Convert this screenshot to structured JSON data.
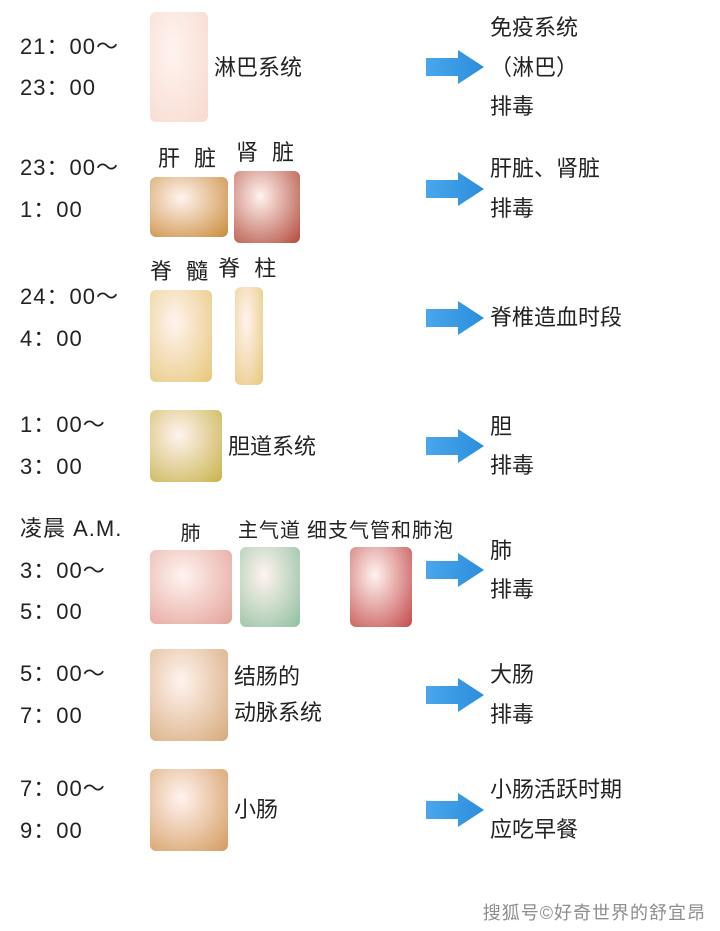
{
  "colors": {
    "text": "#222222",
    "background": "#ffffff",
    "arrow_fill": "#4aa6ec",
    "arrow_fill2": "#2a8edc",
    "watermark": "#7a7a7a",
    "body_ph": "#f7d9cf",
    "liver_ph": "#c98a3a",
    "kidney_ph": "#b24a3a",
    "spine_ph": "#e7c77a",
    "gall_ph": "#c8b24a",
    "lung_ph": "#e3a299",
    "trachea_ph": "#8fbf9f",
    "alveoli_ph": "#c24a4a",
    "colon_ph": "#d6a97a",
    "small_ph": "#d49a5e"
  },
  "arrow": {
    "width": 62,
    "height": 38
  },
  "rows": [
    {
      "time1": "21：00～",
      "time2": "23：00",
      "organs": [
        {
          "label": "",
          "ph_color": "#f7d9cf",
          "w": 58,
          "h": 110
        }
      ],
      "side_label": "淋巴系统",
      "desc1": "免疫系统",
      "desc2": "（淋巴）",
      "desc3": "排毒"
    },
    {
      "time1": "23：00～",
      "time2": "1：00",
      "organs": [
        {
          "label": "肝 脏",
          "ph_color": "#c98a3a",
          "w": 78,
          "h": 60
        },
        {
          "label": "肾 脏",
          "ph_color": "#b24a3a",
          "w": 66,
          "h": 72
        }
      ],
      "desc1": "肝脏、肾脏",
      "desc2": "排毒"
    },
    {
      "time1": "24：00～",
      "time2": "4：00",
      "organs": [
        {
          "label": "脊 髓",
          "ph_color": "#e7c77a",
          "w": 62,
          "h": 92
        },
        {
          "label": "脊 柱",
          "ph_color": "#e7c77a",
          "w": 28,
          "h": 98
        }
      ],
      "desc1": "脊椎造血时段"
    },
    {
      "time1": "1：00～",
      "time2": "3：00",
      "organs": [
        {
          "label": "",
          "ph_color": "#c8b24a",
          "w": 72,
          "h": 72
        }
      ],
      "side_label": "胆道系统",
      "desc1": "胆",
      "desc2": "排毒"
    },
    {
      "pre_label": "凌晨 A.M.",
      "time1": "3：00～",
      "time2": "5：00",
      "organs": [
        {
          "label": "肺",
          "ph_color": "#e3a299",
          "w": 82,
          "h": 74,
          "tight": true
        },
        {
          "label": "主气道",
          "ph_color": "#8fbf9f",
          "w": 60,
          "h": 80,
          "tight": true
        },
        {
          "label": "细支气管和肺泡",
          "ph_color": "#c24a4a",
          "w": 62,
          "h": 80,
          "tight": true
        }
      ],
      "desc1": "肺",
      "desc2": "排毒"
    },
    {
      "time1": "5：00～",
      "time2": "7：00",
      "organs": [
        {
          "label": "",
          "ph_color": "#d6a97a",
          "w": 78,
          "h": 92
        }
      ],
      "side_label": "结肠的",
      "side_label2": "动脉系统",
      "desc1": "大肠",
      "desc2": "排毒"
    },
    {
      "time1": "7：00～",
      "time2": "9：00",
      "organs": [
        {
          "label": "",
          "ph_color": "#d49a5e",
          "w": 78,
          "h": 82
        }
      ],
      "side_label": "小肠",
      "desc1": "小肠活跃时期",
      "desc2": "应吃早餐"
    }
  ],
  "watermark": "搜狐号©好奇世界的舒宜昂"
}
